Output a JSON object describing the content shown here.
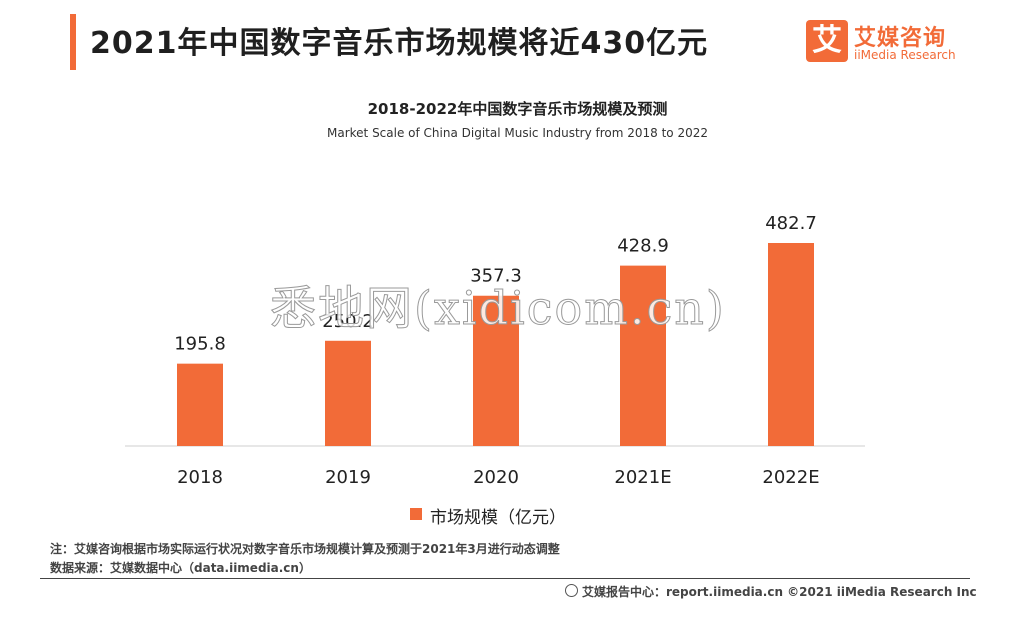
{
  "header": {
    "title": "2021年中国数字音乐市场规模将近430亿元"
  },
  "logo": {
    "mark": "艾",
    "name_cn": "艾媒咨询",
    "name_en": "iiMedia Research"
  },
  "watermark": "悉地网(xidicom.cn)",
  "chart_data": {
    "type": "bar",
    "title": "2018-2022年中国数字音乐市场规模及预测",
    "subtitle": "Market Scale of China Digital Music Industry from 2018 to 2022",
    "categories": [
      "2018",
      "2019",
      "2020",
      "2021E",
      "2022E"
    ],
    "series": [
      {
        "name": "市场规模（亿元）",
        "values": [
          195.8,
          250.2,
          357.3,
          428.9,
          482.7
        ]
      }
    ],
    "value_labels": [
      "195.8",
      "250.2",
      "357.3",
      "428.9",
      "482.7"
    ],
    "ylim": [
      0,
      482.7
    ],
    "grid": false,
    "legend_position": "bottom-center",
    "bar_color": "#f26b38"
  },
  "notes": {
    "note": "注：艾媒咨询根据市场实际运行状况对数字音乐市场规模计算及预测于2021年3月进行动态调整",
    "source": "数据来源：艾媒数据中心（data.iimedia.cn）"
  },
  "footer": {
    "text": "艾媒报告中心：report.iimedia.cn ©2021  iiMedia Research  Inc"
  }
}
